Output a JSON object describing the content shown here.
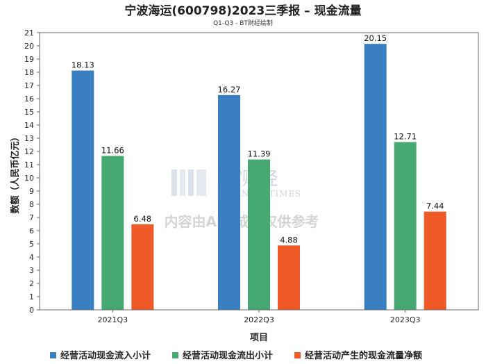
{
  "chart_data": {
    "type": "bar",
    "title": "宁波海运(600798)2023三季报 – 现金流量",
    "subtitle": "Q1-Q3 - BT财经绘制",
    "xlabel": "项目",
    "ylabel": "数额（人民币亿元）",
    "ylim": [
      0,
      21
    ],
    "yticks": [
      0,
      1,
      2,
      3,
      4,
      5,
      6,
      7,
      8,
      9,
      10,
      11,
      12,
      13,
      14,
      15,
      16,
      17,
      18,
      19,
      20,
      21
    ],
    "categories": [
      "2021Q3",
      "2022Q3",
      "2023Q3"
    ],
    "series": [
      {
        "name": "经营活动现金流入小计",
        "color": "#3a7fc1",
        "values": [
          18.13,
          16.27,
          20.15
        ]
      },
      {
        "name": "经营活动现金流出小计",
        "color": "#45a971",
        "values": [
          11.66,
          11.39,
          12.71
        ]
      },
      {
        "name": "经营活动产生的现金流量净额",
        "color": "#f05a28",
        "values": [
          6.48,
          4.88,
          7.44
        ]
      }
    ],
    "grid": false,
    "legend_position": "bottom"
  },
  "watermark": {
    "logo_text": "BT财经",
    "logo_sub": "BUSINESSTIMES",
    "note": "内容由AI生成，仅供参考"
  }
}
